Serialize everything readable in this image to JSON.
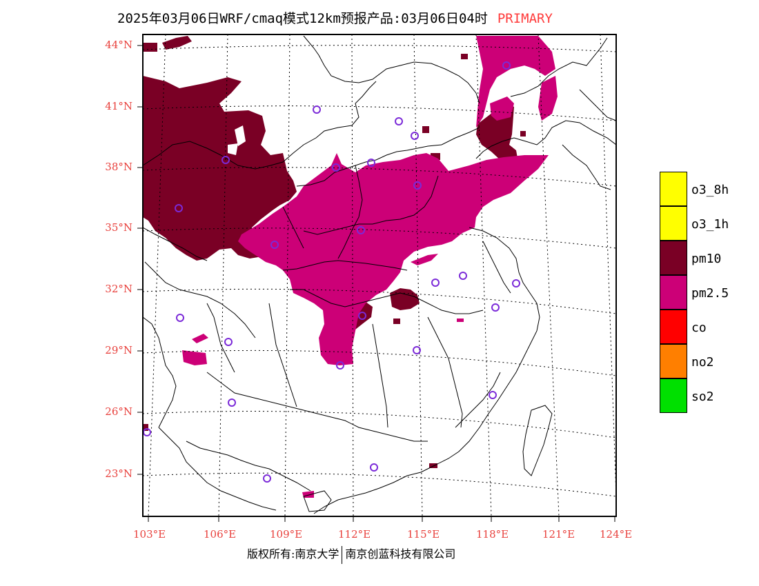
{
  "title": {
    "text": "2025年03月06日WRF/cmaq模式12km预报产品:03月06日04时",
    "tag": "PRIMARY"
  },
  "axes": {
    "lat_labels": [
      "44°N",
      "41°N",
      "38°N",
      "35°N",
      "32°N",
      "29°N",
      "26°N",
      "23°N"
    ],
    "lon_labels": [
      "103°E",
      "106°E",
      "109°E",
      "112°E",
      "115°E",
      "118°E",
      "121°E",
      "124°E"
    ],
    "label_color": "#e8403c"
  },
  "legend": [
    {
      "label": "o3_8h",
      "color": "#ffff00"
    },
    {
      "label": "o3_1h",
      "color": "#ffff00"
    },
    {
      "label": "pm10",
      "color": "#7a0025"
    },
    {
      "label": "pm2.5",
      "color": "#cc0077"
    },
    {
      "label": "co",
      "color": "#ff0000"
    },
    {
      "label": "no2",
      "color": "#ff7f00"
    },
    {
      "label": "so2",
      "color": "#00e000"
    }
  ],
  "footer": {
    "left": "版权所有:南京大学",
    "right": "南京创蓝科技有限公司"
  },
  "pollutant_colors": {
    "pm10": "#7a0025",
    "pm2.5": "#cc0077",
    "station_ring": "#7b2ad8"
  }
}
